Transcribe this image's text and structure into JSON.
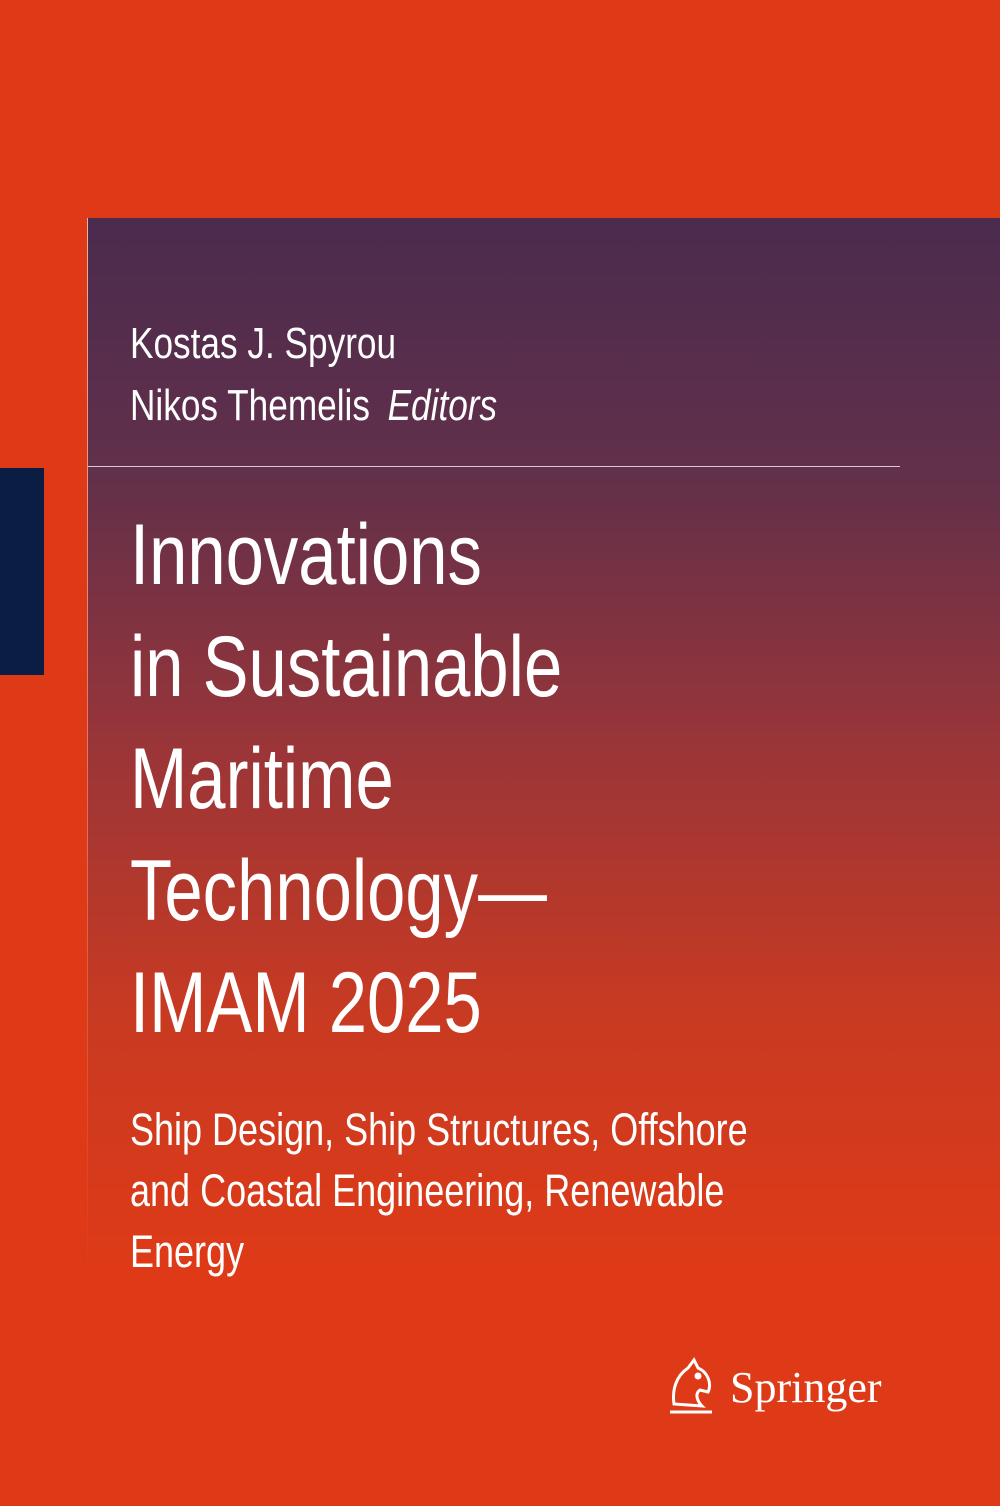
{
  "authors": [
    "Kostas J. Spyrou",
    "Nikos Themelis"
  ],
  "role": "Editors",
  "title_lines": [
    "Innovations",
    "in Sustainable",
    "Maritime",
    "Technology—",
    "IMAM 2025"
  ],
  "subtitle_lines": [
    "Ship Design, Ship Structures, Offshore",
    "and Coastal Engineering, Renewable",
    "Energy"
  ],
  "publisher": "Springer"
}
